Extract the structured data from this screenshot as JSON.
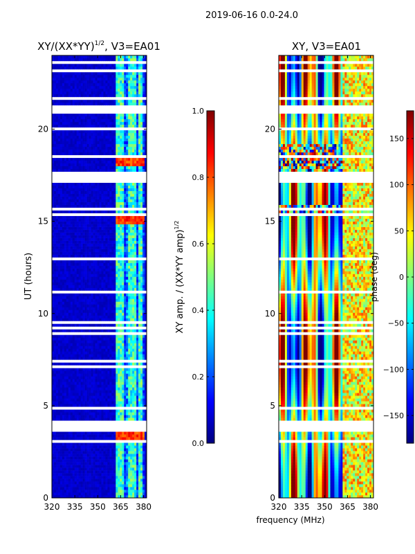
{
  "figure": {
    "suptitle": "2019-06-16 0.0-24.0",
    "shared_xlabel": "frequency (MHz)"
  },
  "colors": {
    "jet": [
      "#00007f",
      "#0000ff",
      "#007fff",
      "#00ffff",
      "#7fff7f",
      "#ffff00",
      "#ff7f00",
      "#ff0000",
      "#7f0000"
    ],
    "axis": "#000000",
    "background": "#ffffff"
  },
  "chart_data": [
    {
      "type": "heatmap",
      "title": "XY/(XX*YY)^1/2, V3=EA01",
      "title_main": "XY/(XX*YY)",
      "title_exp": "1/2",
      "title_tail": ", V3=EA01",
      "xlabel": "",
      "ylabel": "UT (hours)",
      "xlim": [
        320,
        382
      ],
      "ylim": [
        0,
        24
      ],
      "xticks": [
        320,
        335,
        350,
        365,
        380
      ],
      "yticks": [
        0,
        5,
        10,
        15,
        20
      ],
      "colorbar": {
        "label": "XY amp. / (XX*YY amp)^1/2",
        "label_main": "XY amp. / (XX*YY amp)",
        "label_exp": "1/2",
        "range": [
          0.0,
          1.0
        ],
        "ticks": [
          "0.0",
          "0.2",
          "0.4",
          "0.6",
          "0.8",
          "1.0"
        ]
      },
      "description": "Mostly low amplitude (~0.1) below 362 MHz; elevated values (0.3-0.6) in 362-380 MHz channels; saturated (~0.8-0.9) bursts near 3-4 h, 15 h and 18 h."
    },
    {
      "type": "heatmap",
      "title": "XY, V3=EA01",
      "xlabel": "frequency (MHz)",
      "ylabel": "",
      "xlim": [
        320,
        382
      ],
      "ylim": [
        0,
        24
      ],
      "xticks": [
        320,
        335,
        350,
        365,
        380
      ],
      "yticks": [
        0,
        5,
        10,
        15,
        20
      ],
      "colorbar": {
        "label": "phase (deg)",
        "range": [
          -180,
          180
        ],
        "ticks": [
          "-150",
          "-100",
          "-50",
          "0",
          "50",
          "100",
          "150"
        ]
      },
      "description": "Phase varies across frequency with vertical banding; noisy sections near 15.5 h and 18-19 h."
    }
  ]
}
